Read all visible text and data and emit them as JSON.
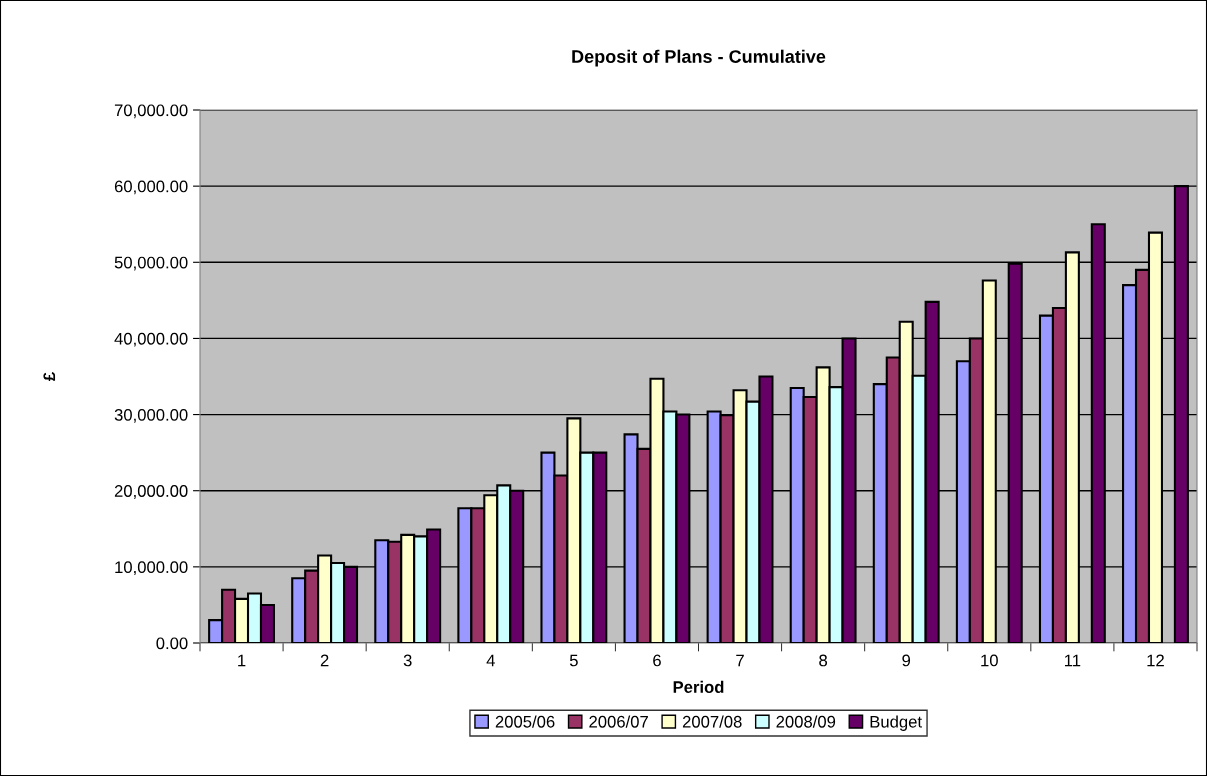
{
  "chart_data": {
    "type": "bar",
    "title": "Deposit of Plans - Cumulative",
    "xlabel": "Period",
    "ylabel": "£",
    "categories": [
      "1",
      "2",
      "3",
      "4",
      "5",
      "6",
      "7",
      "8",
      "9",
      "10",
      "11",
      "12"
    ],
    "series": [
      {
        "name": "2005/06",
        "color": "#9999ff",
        "values": [
          3000,
          8500,
          13500,
          17700,
          25000,
          27400,
          30400,
          33500,
          34000,
          37000,
          43000,
          47000
        ]
      },
      {
        "name": "2006/07",
        "color": "#993366",
        "values": [
          7000,
          9500,
          13300,
          17700,
          22000,
          25500,
          29900,
          32300,
          37500,
          40000,
          44000,
          49000
        ]
      },
      {
        "name": "2007/08",
        "color": "#ffffcc",
        "values": [
          5800,
          11500,
          14200,
          19400,
          29500,
          34700,
          33200,
          36200,
          42200,
          47600,
          51300,
          53900
        ]
      },
      {
        "name": "2008/09",
        "color": "#ccffff",
        "values": [
          6500,
          10500,
          14000,
          20700,
          25000,
          30400,
          31700,
          33600,
          35100,
          null,
          null,
          null
        ]
      },
      {
        "name": "Budget",
        "color": "#660066",
        "values": [
          5000,
          10000,
          14900,
          20000,
          25000,
          30000,
          35000,
          40000,
          44800,
          49800,
          55000,
          60000
        ]
      }
    ],
    "ylim": [
      0,
      70000
    ],
    "yticks": [
      {
        "value": 0,
        "label": "0.00"
      },
      {
        "value": 10000,
        "label": "10,000.00"
      },
      {
        "value": 20000,
        "label": "20,000.00"
      },
      {
        "value": 30000,
        "label": "30,000.00"
      },
      {
        "value": 40000,
        "label": "40,000.00"
      },
      {
        "value": 50000,
        "label": "50,000.00"
      },
      {
        "value": 60000,
        "label": "60,000.00"
      },
      {
        "value": 70000,
        "label": "70,000.00"
      }
    ],
    "grid": "y",
    "legend": "bottom"
  }
}
